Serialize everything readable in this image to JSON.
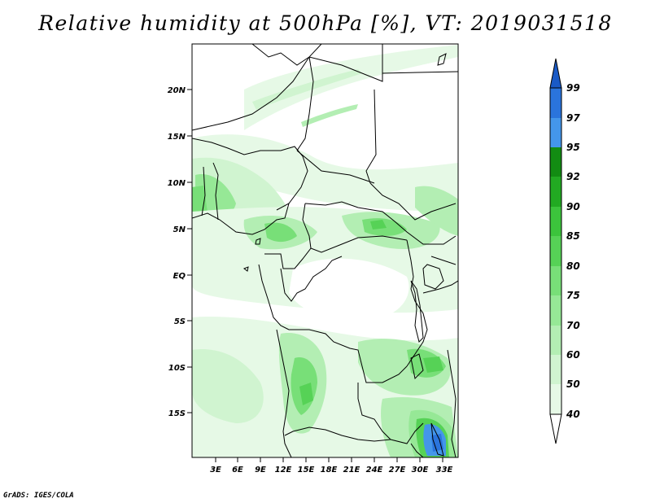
{
  "title": "Relative humidity at 500hPa [%], VT: 2019031518",
  "credit": "GrADS: IGES/COLA",
  "map": {
    "lat_ticks": [
      "20N",
      "15N",
      "10N",
      "5N",
      "EQ",
      "5S",
      "10S",
      "15S"
    ],
    "lon_ticks": [
      "3E",
      "6E",
      "9E",
      "12E",
      "15E",
      "18E",
      "21E",
      "24E",
      "27E",
      "30E",
      "33E"
    ],
    "colorbar_labels": [
      "40",
      "50",
      "60",
      "70",
      "75",
      "80",
      "85",
      "90",
      "92",
      "95",
      "97",
      "99"
    ],
    "colors": {
      "lt40": "#ffffff",
      "c40": "#e6f9e6",
      "c50": "#d0f4d0",
      "c60": "#b3eeb3",
      "c70": "#96e896",
      "c75": "#78df78",
      "c80": "#56d256",
      "c85": "#3cc43c",
      "c90": "#22aa22",
      "c92": "#128c12",
      "c95": "#4496ea",
      "c97": "#2a74dc",
      "c99": "#1a5ac6"
    }
  }
}
